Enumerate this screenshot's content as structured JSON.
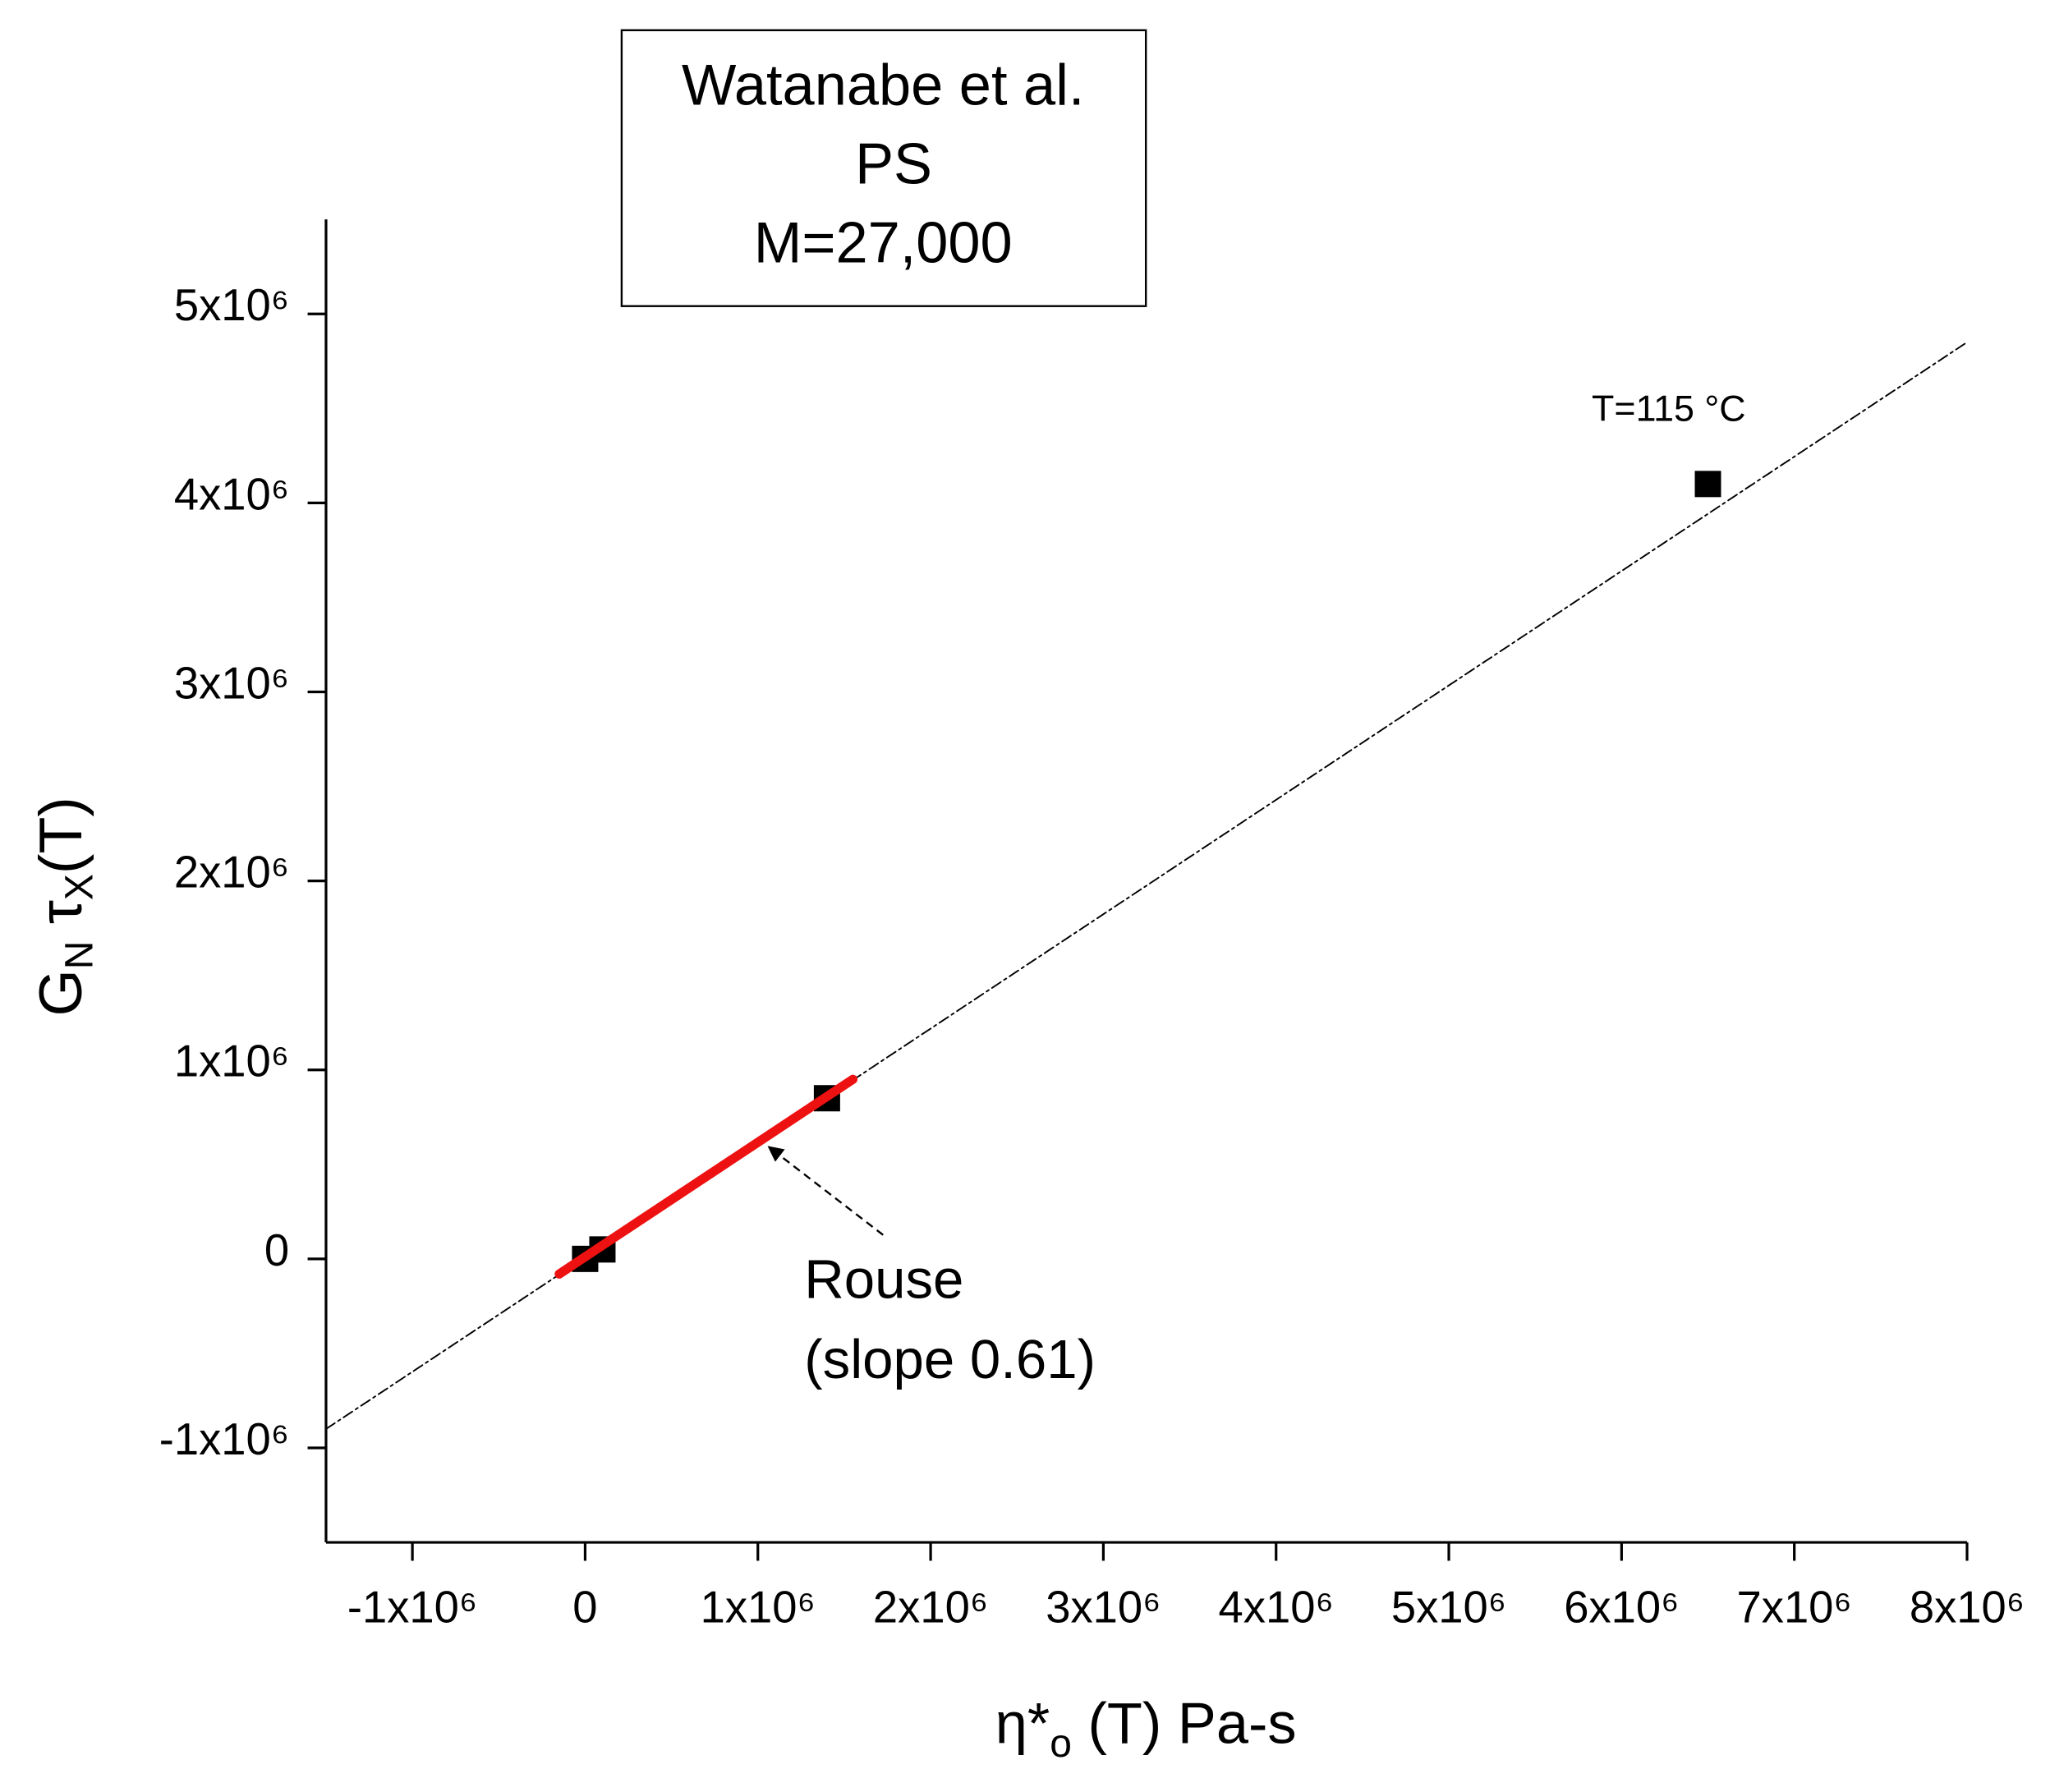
{
  "chart_data": {
    "type": "scatter",
    "box_lines": [
      "Watanabe et al.",
      "PS",
      "M=27,000"
    ],
    "ylabel": [
      "G",
      "N",
      " τ",
      "X",
      "(T)"
    ],
    "xlabel": [
      "η*",
      "o",
      " (T)    Pa-s"
    ],
    "annotations": [
      "T=115 °C",
      "Rouse",
      "(slope 0.61)"
    ],
    "xlim": [
      -1500000,
      8000000
    ],
    "ylim": [
      -1500000,
      5500000
    ],
    "xticks": [
      {
        "value": -1000000,
        "label": "-1x10⁶"
      },
      0,
      {
        "value": 1000000,
        "label": "1x10⁶"
      },
      {
        "value": 2000000,
        "label": "2x10⁶"
      },
      {
        "value": 3000000,
        "label": "3x10⁶"
      },
      {
        "value": 4000000,
        "label": "4x10⁶"
      },
      {
        "value": 5000000,
        "label": "5x10⁶"
      },
      {
        "value": 6000000,
        "label": "6x10⁶"
      },
      {
        "value": 7000000,
        "label": "7x10⁶"
      },
      {
        "value": 8000000,
        "label": "8x10⁶"
      }
    ],
    "yticks": [
      {
        "value": -1000000,
        "label": "-1x10⁶"
      },
      0,
      {
        "value": 1000000,
        "label": "1x10⁶"
      },
      {
        "value": 2000000,
        "label": "2x10⁶"
      },
      {
        "value": 3000000,
        "label": "3x10⁶"
      },
      {
        "value": 4000000,
        "label": "4x10⁶"
      },
      {
        "value": 5000000,
        "label": "5x10⁶"
      }
    ],
    "series": [
      {
        "type": "scatter",
        "color": "#000000",
        "x": [
          0,
          100000,
          1400000,
          6500000
        ],
        "values": [
          0,
          50000,
          850000,
          4100000
        ]
      },
      {
        "type": "line",
        "color": "#000000",
        "dashed": true,
        "x": [
          -1500000,
          8000000
        ],
        "values": [
          -900000,
          4850000
        ]
      },
      {
        "type": "line",
        "color": "#ee1111",
        "dashed": false,
        "x": [
          -150000,
          1550000
        ],
        "values": [
          -80000,
          950000
        ]
      }
    ]
  }
}
